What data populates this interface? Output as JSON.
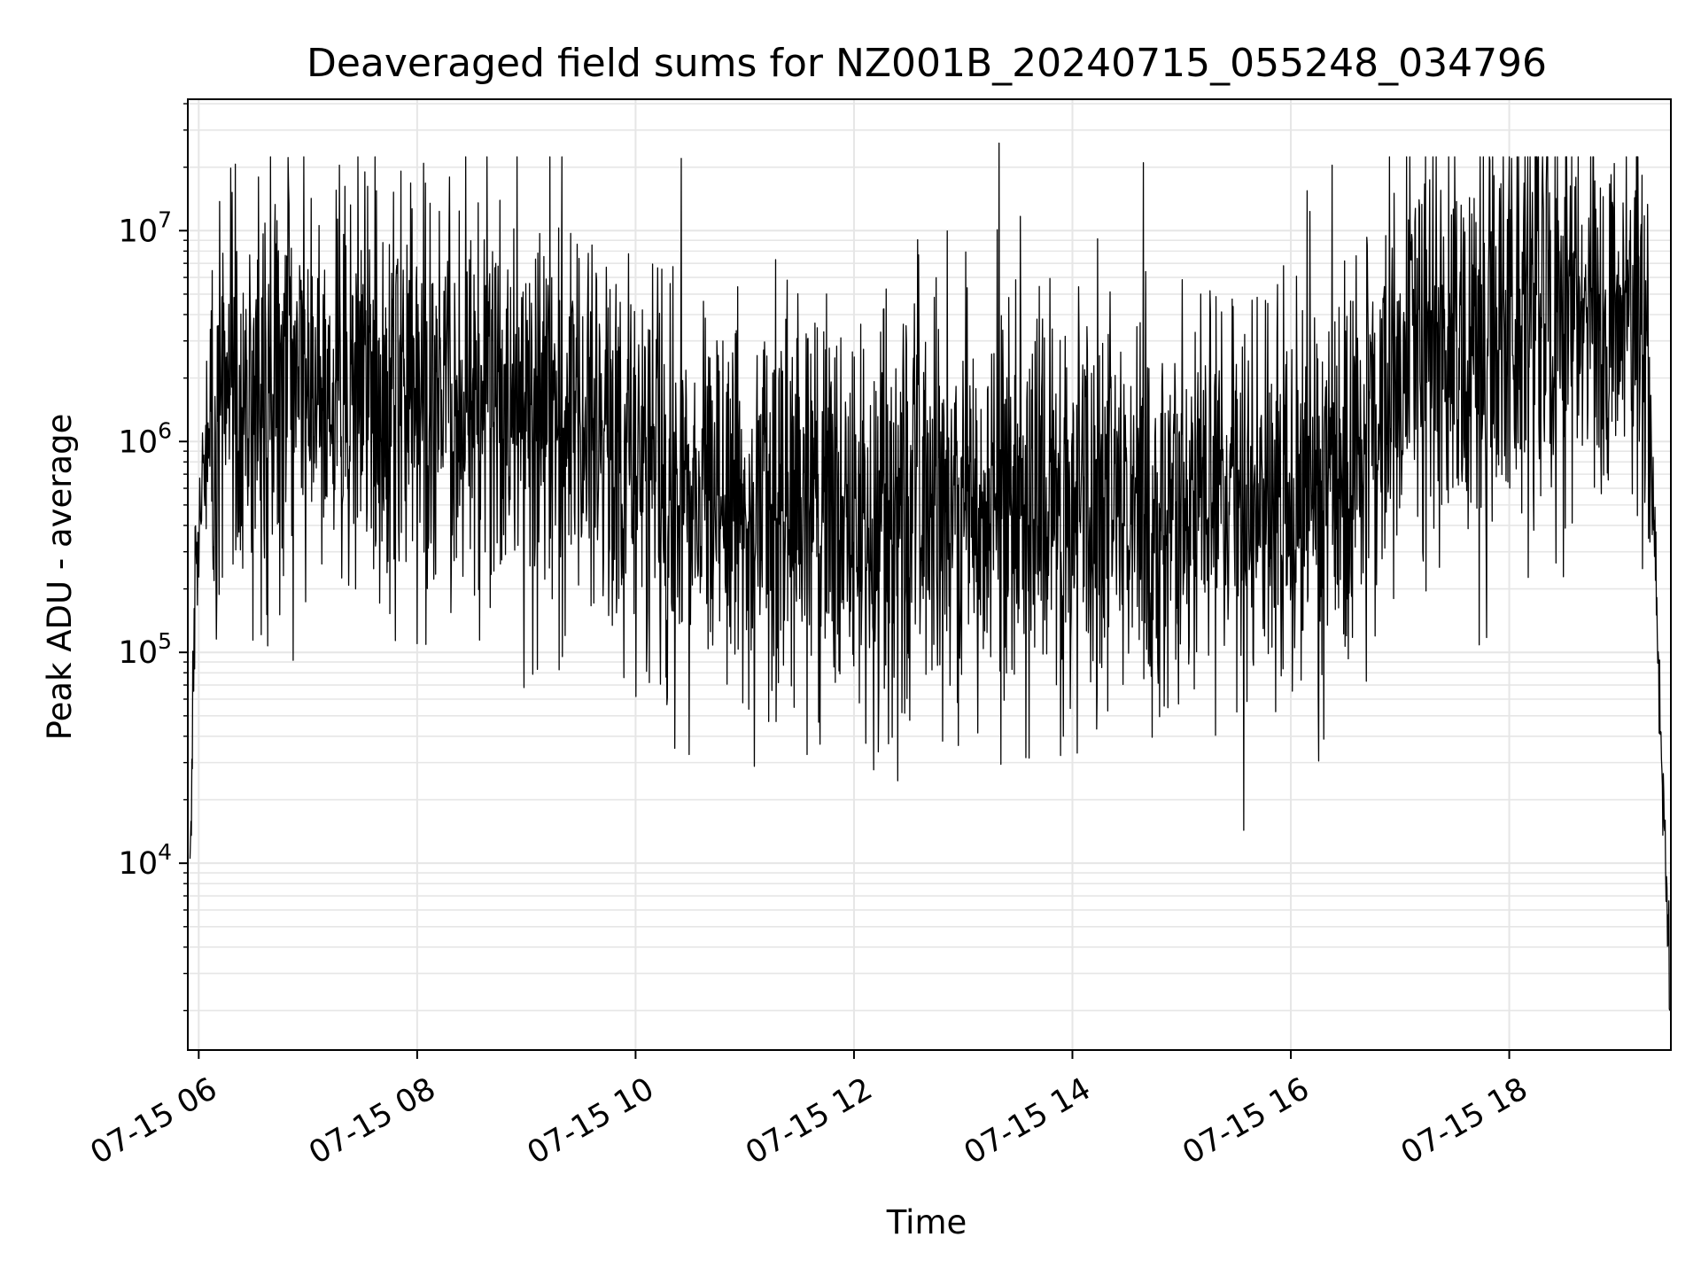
{
  "chart_data": {
    "type": "line",
    "title": "Deaveraged field sums for NZ001B_20240715_055248_034796",
    "xlabel": "Time",
    "ylabel": "Peak ADU - average",
    "x_ticks": [
      "07-15 06",
      "07-15 08",
      "07-15 10",
      "07-15 12",
      "07-15 14",
      "07-15 16",
      "07-15 18"
    ],
    "x_tick_hours": [
      6,
      8,
      10,
      12,
      14,
      16,
      18
    ],
    "xlim_hours": [
      5.9,
      19.48
    ],
    "y_scale": "log",
    "ylim": [
      1300,
      42000000
    ],
    "y_ticks": [
      {
        "base": "10",
        "exp": "4",
        "value": 10000
      },
      {
        "base": "10",
        "exp": "5",
        "value": 100000
      },
      {
        "base": "10",
        "exp": "6",
        "value": 1000000
      },
      {
        "base": "10",
        "exp": "7",
        "value": 10000000
      }
    ],
    "grid": true,
    "line_color": "#000000",
    "grid_color": "#e6e6e6",
    "series": [
      {
        "x_hours": [
          5.92,
          5.97,
          6.05,
          6.3,
          6.6,
          7.0,
          7.5,
          8.0,
          8.5,
          9.0,
          9.5,
          10.0,
          10.5,
          11.0,
          11.5,
          12.0,
          12.5,
          13.0,
          13.5,
          14.0,
          14.5,
          15.0,
          15.5,
          16.0,
          16.3,
          16.6,
          17.0,
          17.5,
          18.0,
          18.5,
          19.0,
          19.25,
          19.35,
          19.42,
          19.47
        ],
        "y_median": [
          10500,
          300000,
          800000,
          1800000,
          2000000,
          1900000,
          1700000,
          1600000,
          1700000,
          1600000,
          1200000,
          700000,
          550000,
          500000,
          480000,
          500000,
          520000,
          550000,
          500000,
          450000,
          460000,
          480000,
          500000,
          500000,
          700000,
          1000000,
          2000000,
          3000000,
          4000000,
          4000000,
          3500000,
          3000000,
          150000,
          15000,
          2000
        ],
        "spikes": [
          {
            "x_hour": 7.52,
            "y": 19000000
          },
          {
            "x_hour": 10.42,
            "y": 22000000
          },
          {
            "x_hour": 13.33,
            "y": 26000000
          },
          {
            "x_hour": 14.65,
            "y": 21000000
          },
          {
            "x_hour": 18.02,
            "y": 22000000
          },
          {
            "x_hour": 11.22,
            "y": 47000
          },
          {
            "x_hour": 8.0,
            "y": 110000
          },
          {
            "x_hour": 16.25,
            "y": 63000
          }
        ]
      }
    ]
  }
}
